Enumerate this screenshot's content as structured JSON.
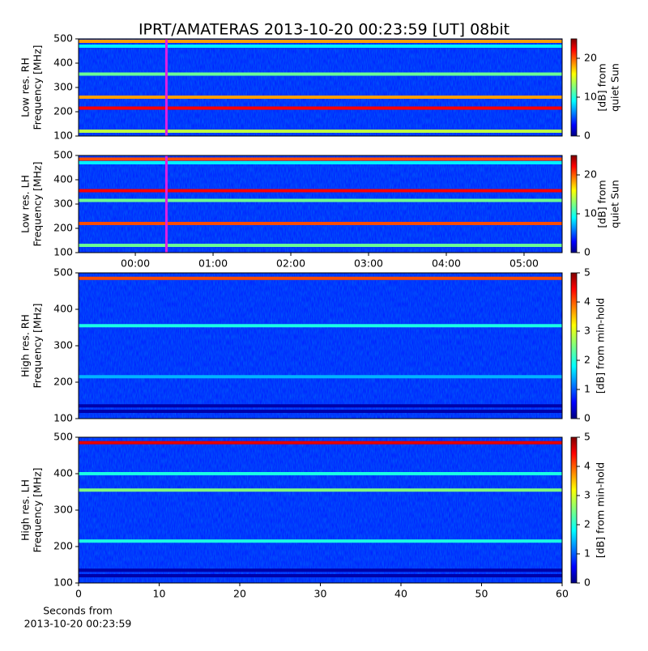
{
  "title": "IPRT/AMATERAS 2013-10-20 00:23:59 [UT]   08bit",
  "chart_data": [
    {
      "type": "heatmap",
      "ylabel": [
        "Low res. RH",
        "Frequency [MHz]"
      ],
      "ylim": [
        100,
        500
      ],
      "yticks": [
        100,
        200,
        300,
        400,
        500
      ],
      "xlim": [
        -0.73,
        5.49
      ],
      "cursor": 0.4,
      "cursor_color": "#e020e0",
      "clim": [
        0,
        25
      ],
      "cticks": [
        0,
        10,
        20
      ],
      "clabel": [
        "[dB] from",
        "quiet Sun"
      ],
      "background": 4,
      "lines": {
        "y": [
          490,
          470,
          355,
          260,
          215,
          120
        ],
        "values": [
          18,
          9,
          12,
          18,
          22,
          14
        ]
      }
    },
    {
      "type": "heatmap",
      "ylabel": [
        "Low res. LH",
        "Frequency [MHz]"
      ],
      "ylim": [
        100,
        500
      ],
      "yticks": [
        100,
        200,
        300,
        400,
        500
      ],
      "xlim": [
        -0.73,
        5.49
      ],
      "xticks": [
        {
          "value": 0,
          "label": "00:00"
        },
        {
          "value": 1,
          "label": "01:00"
        },
        {
          "value": 2,
          "label": "02:00"
        },
        {
          "value": 3,
          "label": "03:00"
        },
        {
          "value": 4,
          "label": "04:00"
        },
        {
          "value": 5,
          "label": "05:00"
        }
      ],
      "cursor": 0.4,
      "cursor_color": "#e020e0",
      "clim": [
        0,
        25
      ],
      "cticks": [
        0,
        10,
        20
      ],
      "clabel": [
        "[dB] from",
        "quiet Sun"
      ],
      "background": 4,
      "lines": {
        "y": [
          485,
          470,
          355,
          315,
          220,
          130
        ],
        "values": [
          20,
          9,
          22,
          12,
          20,
          12
        ]
      }
    },
    {
      "type": "heatmap",
      "ylabel": [
        "High res. RH",
        "Frequency [MHz]"
      ],
      "ylim": [
        100,
        500
      ],
      "yticks": [
        100,
        200,
        300,
        400,
        500
      ],
      "xlim": [
        0,
        60
      ],
      "clim": [
        0,
        5
      ],
      "cticks": [
        0,
        1,
        2,
        3,
        4,
        5
      ],
      "clabel": [
        "[dB] from min-hold"
      ],
      "background": 0.8,
      "lines": {
        "y": [
          485,
          355,
          215,
          135,
          120
        ],
        "values": [
          4,
          2,
          1.5,
          0.2,
          0.2
        ]
      }
    },
    {
      "type": "heatmap",
      "ylabel": [
        "High res. LH",
        "Frequency [MHz]"
      ],
      "ylim": [
        100,
        500
      ],
      "yticks": [
        100,
        200,
        300,
        400,
        500
      ],
      "xlim": [
        0,
        60
      ],
      "xticks": [
        0,
        10,
        20,
        30,
        40,
        50,
        60
      ],
      "xlabel": [
        "Seconds from",
        "2013-10-20 00:23:59"
      ],
      "clim": [
        0,
        5
      ],
      "cticks": [
        0,
        1,
        2,
        3,
        4,
        5
      ],
      "clabel": [
        "[dB] from min-hold"
      ],
      "background": 0.8,
      "lines": {
        "y": [
          485,
          400,
          355,
          215,
          135,
          120
        ],
        "values": [
          4.5,
          2,
          2.5,
          2,
          0.2,
          0.2
        ]
      }
    }
  ]
}
